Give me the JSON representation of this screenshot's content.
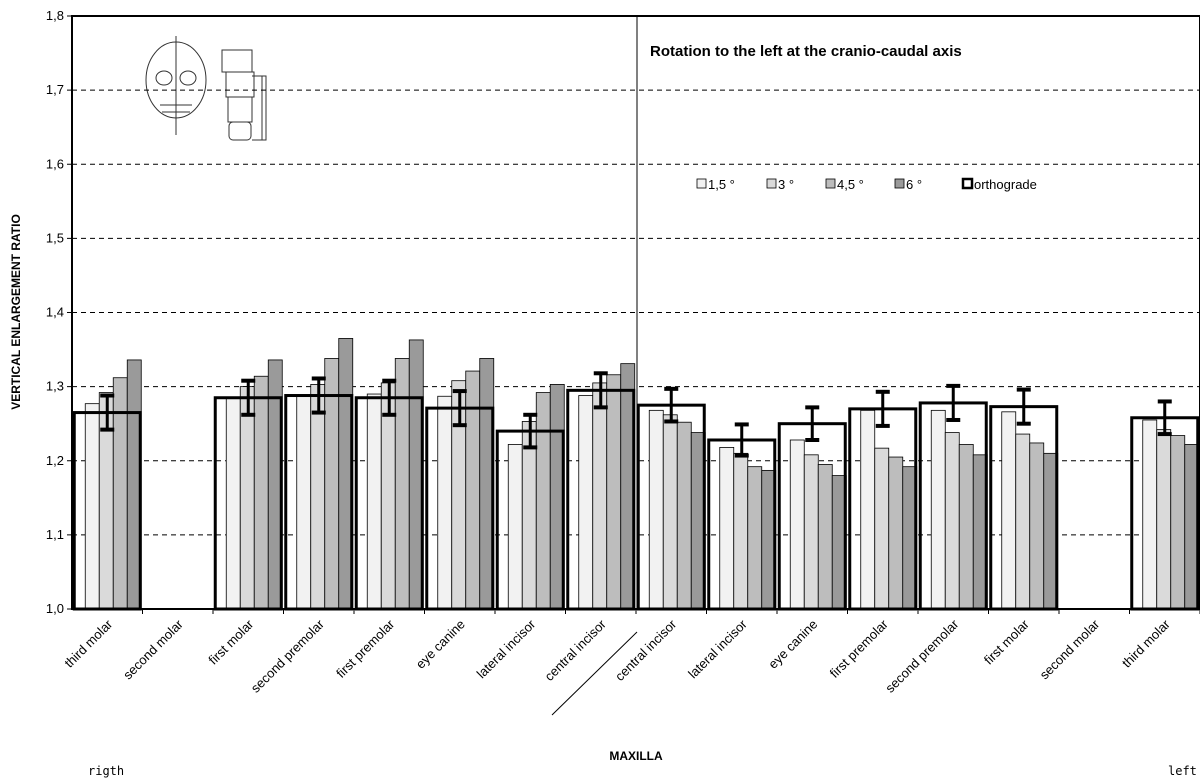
{
  "chart_data": {
    "type": "bar",
    "title": "Rotation to the left at the cranio-caudal axis",
    "y_label": "VERTICAL ENLARGEMENT RATIO",
    "x_label": "MAXILLA",
    "annotations": [
      "rigth",
      "left"
    ],
    "categories": [
      "third molar",
      "second molar",
      "first molar",
      "second premolar",
      "first premolar",
      "eye canine",
      "lateral incisor",
      "central incisor",
      "central incisor",
      "lateral incisor",
      "eye canine",
      "first premolar",
      "second premolar",
      "first molar",
      "second molar",
      "third molar"
    ],
    "series": [
      {
        "name": "1,5 °",
        "color": "#f2f2f2",
        "values": [
          1.277,
          null,
          1.284,
          1.288,
          1.29,
          1.287,
          1.222,
          1.288,
          1.268,
          1.218,
          1.228,
          1.268,
          1.268,
          1.266,
          null,
          1.255
        ]
      },
      {
        "name": "3 °",
        "color": "#dadada",
        "values": [
          1.292,
          null,
          1.3,
          1.303,
          1.305,
          1.308,
          1.253,
          1.305,
          1.262,
          1.21,
          1.208,
          1.217,
          1.238,
          1.236,
          null,
          1.242
        ]
      },
      {
        "name": "4,5 °",
        "color": "#bdbdbd",
        "values": [
          1.312,
          null,
          1.314,
          1.338,
          1.338,
          1.321,
          1.292,
          1.316,
          1.252,
          1.192,
          1.195,
          1.205,
          1.222,
          1.224,
          null,
          1.234
        ]
      },
      {
        "name": "6 °",
        "color": "#9a9a9a",
        "values": [
          1.336,
          null,
          1.336,
          1.365,
          1.363,
          1.338,
          1.303,
          1.331,
          1.238,
          1.187,
          1.18,
          1.192,
          1.208,
          1.21,
          null,
          1.222
        ]
      },
      {
        "name": "orthograde",
        "color": "#000000",
        "outline": true,
        "values": [
          1.265,
          null,
          1.285,
          1.288,
          1.285,
          1.271,
          1.24,
          1.295,
          1.275,
          1.228,
          1.25,
          1.27,
          1.278,
          1.273,
          null,
          1.258
        ],
        "errors": [
          0.023,
          null,
          0.023,
          0.023,
          0.023,
          0.023,
          0.022,
          0.023,
          0.022,
          0.021,
          0.022,
          0.023,
          0.023,
          0.023,
          null,
          0.022
        ]
      }
    ],
    "ylim": [
      1.0,
      1.8
    ],
    "yticks": [
      {
        "value": 1.0,
        "label": "1,0"
      },
      {
        "value": 1.1,
        "label": "1,1"
      },
      {
        "value": 1.2,
        "label": "1,2"
      },
      {
        "value": 1.3,
        "label": "1,3"
      },
      {
        "value": 1.4,
        "label": "1,4"
      },
      {
        "value": 1.5,
        "label": "1,5"
      },
      {
        "value": 1.6,
        "label": "1,6"
      },
      {
        "value": 1.7,
        "label": "1,7"
      },
      {
        "value": 1.8,
        "label": "1,8"
      }
    ],
    "grid": true
  }
}
